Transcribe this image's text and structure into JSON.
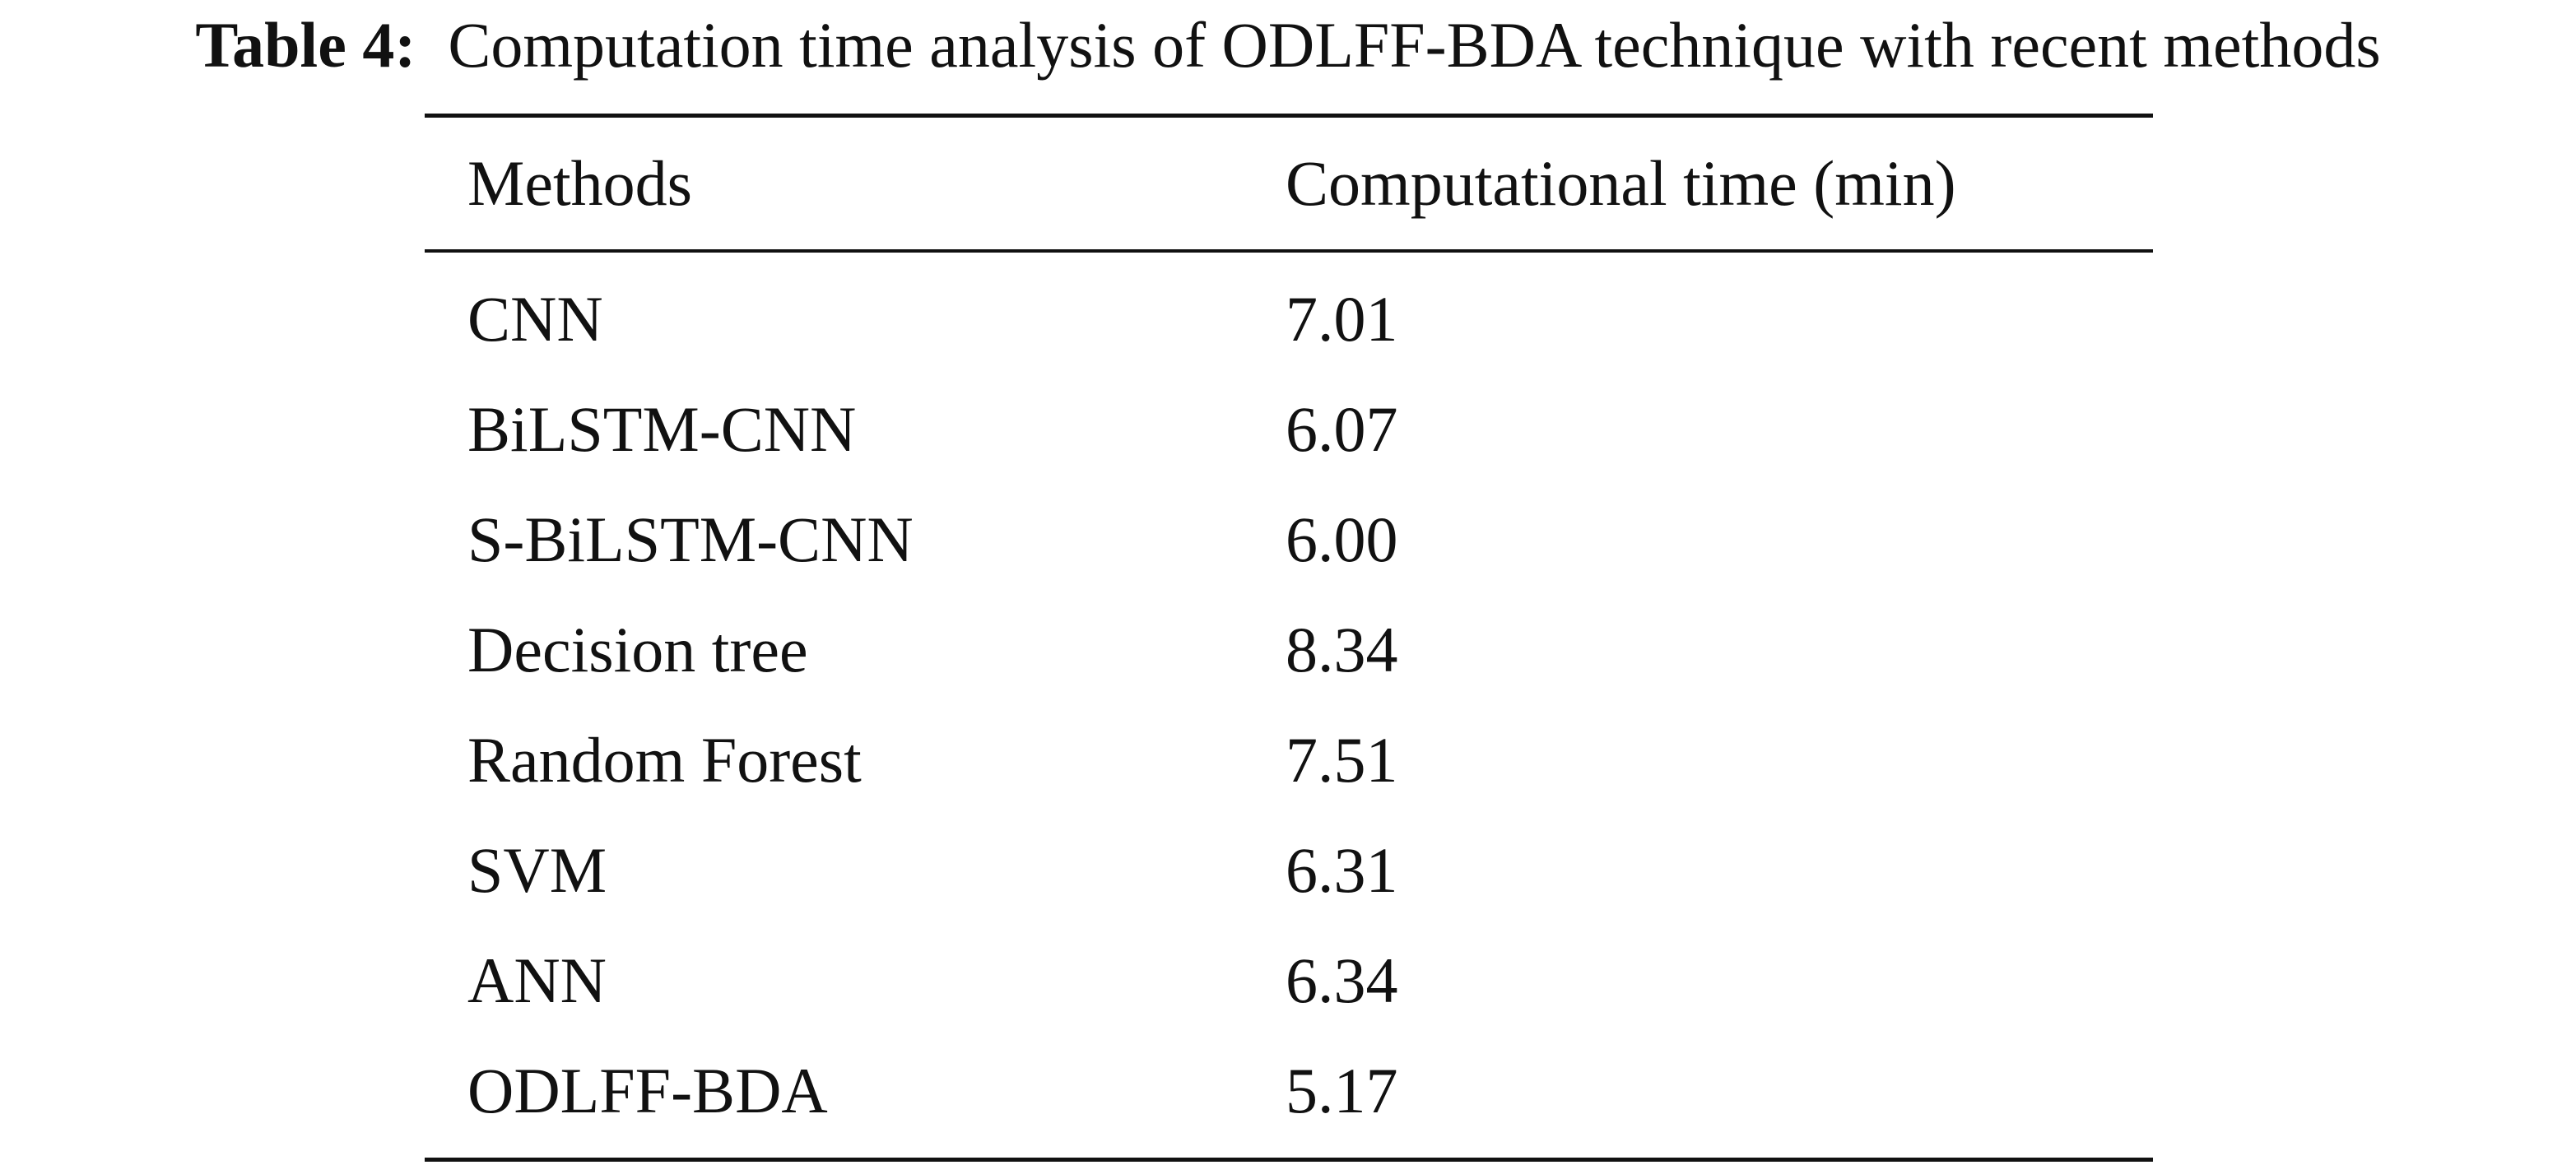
{
  "caption": {
    "label": "Table 4:",
    "text": "Computation time analysis of ODLFF-BDA technique with recent methods"
  },
  "table": {
    "headers": {
      "method": "Methods",
      "time": "Computational time (min)"
    },
    "rows": [
      {
        "method": "CNN",
        "time": "7.01"
      },
      {
        "method": "BiLSTM-CNN",
        "time": "6.07"
      },
      {
        "method": "S-BiLSTM-CNN",
        "time": "6.00"
      },
      {
        "method": "Decision tree",
        "time": "8.34"
      },
      {
        "method": "Random Forest",
        "time": "7.51"
      },
      {
        "method": "SVM",
        "time": "6.31"
      },
      {
        "method": "ANN",
        "time": "6.34"
      },
      {
        "method": "ODLFF-BDA",
        "time": "5.17"
      }
    ]
  }
}
